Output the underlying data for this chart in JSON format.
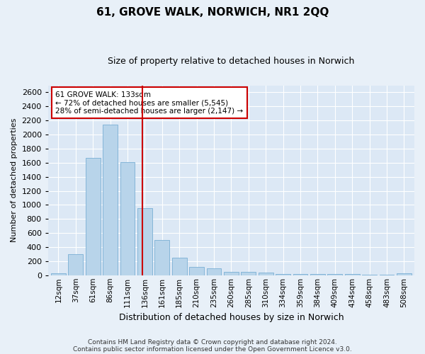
{
  "title1": "61, GROVE WALK, NORWICH, NR1 2QQ",
  "title2": "Size of property relative to detached houses in Norwich",
  "xlabel": "Distribution of detached houses by size in Norwich",
  "ylabel": "Number of detached properties",
  "footnote1": "Contains HM Land Registry data © Crown copyright and database right 2024.",
  "footnote2": "Contains public sector information licensed under the Open Government Licence v3.0.",
  "categories": [
    "12sqm",
    "37sqm",
    "61sqm",
    "86sqm",
    "111sqm",
    "136sqm",
    "161sqm",
    "185sqm",
    "210sqm",
    "235sqm",
    "260sqm",
    "285sqm",
    "310sqm",
    "334sqm",
    "359sqm",
    "384sqm",
    "409sqm",
    "434sqm",
    "458sqm",
    "483sqm",
    "508sqm"
  ],
  "values": [
    25,
    300,
    1670,
    2140,
    1605,
    955,
    500,
    248,
    120,
    100,
    48,
    48,
    35,
    20,
    18,
    18,
    20,
    15,
    5,
    5,
    25
  ],
  "bar_color": "#b8d4ea",
  "bar_edgecolor": "#7aafd4",
  "vline_color": "#cc0000",
  "vline_x": 4.85,
  "annotation_line1": "61 GROVE WALK: 133sqm",
  "annotation_line2": "← 72% of detached houses are smaller (5,545)",
  "annotation_line3": "28% of semi-detached houses are larger (2,147) →",
  "background_color": "#dce8f5",
  "fig_background_color": "#e8f0f8",
  "grid_color": "#ffffff",
  "ylim": [
    0,
    2700
  ],
  "yticks": [
    0,
    200,
    400,
    600,
    800,
    1000,
    1200,
    1400,
    1600,
    1800,
    2000,
    2200,
    2400,
    2600
  ],
  "title1_fontsize": 11,
  "title2_fontsize": 9,
  "xlabel_fontsize": 9,
  "ylabel_fontsize": 8,
  "tick_fontsize": 8,
  "xtick_fontsize": 7.5,
  "footnote_fontsize": 6.5
}
